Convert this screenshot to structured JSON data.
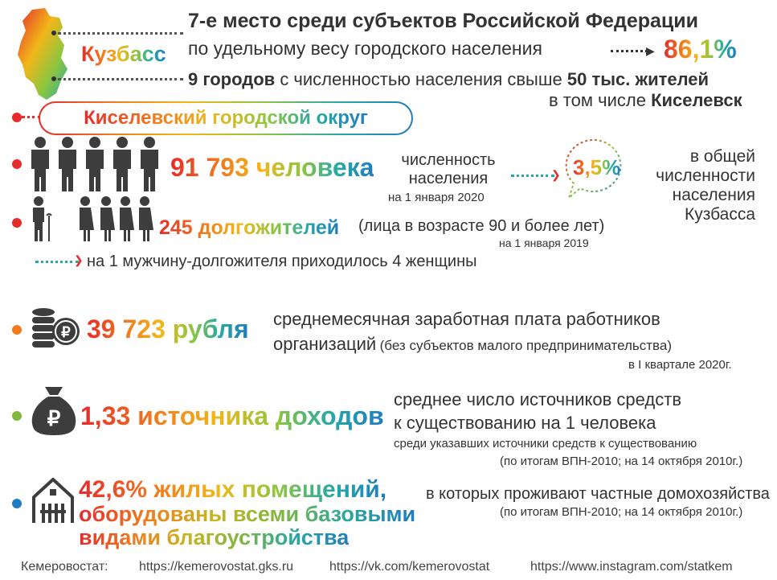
{
  "header": {
    "region": "Кузбасс",
    "rank_line": "7-е место среди субъектов Российской Федерации",
    "urban_line": "по удельному весу городского населения",
    "urban_value": "86,1%",
    "cities_bold": "9 городов",
    "cities_rest": "с численностью населения свыше",
    "cities_threshold": "50 тыс. жителей",
    "including_prefix": "в том числе",
    "including_city": "Киселевск"
  },
  "district_title": "Киселевский городской округ",
  "population": {
    "value": "91 793 человека",
    "label_line1": "численность",
    "label_line2": "населения",
    "date": "на 1 января 2020",
    "share": "3,5%",
    "share_line1": "в общей",
    "share_line2": "численности",
    "share_line3": "населения",
    "share_line4": "Кузбасса"
  },
  "longevity": {
    "value": "245 долгожителей",
    "note": "(лица в возрасте 90 и более лет)",
    "date": "на 1 января 2019",
    "ratio": "на 1 мужчину-долгожителя приходилось 4 женщины"
  },
  "salary": {
    "value": "39 723 рубля",
    "label_line1": "среднемесячная заработная плата работников",
    "label_line2a": "организаций",
    "label_line2b": "(без субъектов малого предпринимательства)",
    "date": "в I квартале 2020г."
  },
  "income": {
    "value": "1,33 источника доходов",
    "label_line1": "среднее число источников средств",
    "label_line2": "к существованию на 1 человека",
    "note": "среди указавших источники средств к существованию",
    "source": "(по итогам ВПН-2010; на 14 октября 2010г.)"
  },
  "housing": {
    "value_line1": "42,6% жилых помещений,",
    "value_line2": "оборудованы всеми базовыми",
    "value_line3": "видами благоустройства",
    "label": "в которых проживают частные домохозяйства",
    "source": "(по итогам ВПН-2010; на 14 октября 2010г.)"
  },
  "footer": {
    "org": "Кемеровостат:",
    "link1": "https://kemerovostat.gks.ru",
    "link2": "https://vk.com/kemerovostat",
    "link3": "https://www.instagram.com/statkem"
  },
  "colors": {
    "red": "#e52b2b",
    "orange": "#f07c1e",
    "green": "#7fb73f",
    "blue": "#1f7cc0"
  }
}
